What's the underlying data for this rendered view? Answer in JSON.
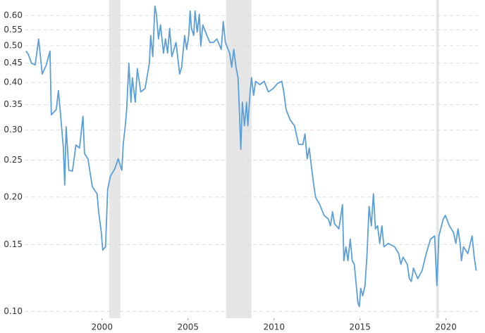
{
  "chart_data": {
    "type": "line",
    "log_y": true,
    "grid": true,
    "xlim": [
      1995.5,
      2021.9
    ],
    "ylim": [
      0.096,
      0.64
    ],
    "xticks": [
      2000,
      2005,
      2010,
      2015,
      2020
    ],
    "yticks": [
      {
        "value": 0.1,
        "label": "0.10"
      },
      0.15,
      {
        "value": 0.2,
        "label": "0.20"
      },
      0.25,
      {
        "value": 0.3,
        "label": "0.30"
      },
      0.35,
      {
        "value": 0.4,
        "label": "0.40"
      },
      0.45,
      {
        "value": 0.5,
        "label": "0.50"
      },
      0.55,
      {
        "value": 0.6,
        "label": "0.60"
      }
    ],
    "shaded_regions": [
      [
        2000.41,
        2001.07
      ],
      [
        2007.21,
        2008.69
      ],
      [
        2019.43,
        2019.59
      ]
    ],
    "shade_color": "#e6e6e6",
    "series": [
      {
        "color": "#5b9fd9",
        "x": [
          1995.57,
          1995.7,
          1995.9,
          1996.11,
          1996.31,
          1996.52,
          1996.76,
          1996.97,
          1997.05,
          1997.34,
          1997.46,
          1997.58,
          1997.75,
          1997.83,
          1997.91,
          1998.07,
          1998.28,
          1998.48,
          1998.69,
          1998.89,
          1998.98,
          1999.18,
          1999.43,
          1999.71,
          1999.8,
          1999.96,
          2000.04,
          2000.2,
          2000.33,
          2000.49,
          2000.74,
          2000.94,
          2001.15,
          2001.23,
          2001.35,
          2001.43,
          2001.56,
          2001.68,
          2001.76,
          2001.93,
          2002.05,
          2002.25,
          2002.5,
          2002.75,
          2002.83,
          2002.95,
          2003.07,
          2003.16,
          2003.28,
          2003.4,
          2003.57,
          2003.69,
          2003.81,
          2003.93,
          2004.06,
          2004.3,
          2004.51,
          2004.63,
          2004.8,
          2004.92,
          2005.04,
          2005.12,
          2005.2,
          2005.33,
          2005.41,
          2005.53,
          2005.66,
          2005.74,
          2005.86,
          2006.02,
          2006.27,
          2006.48,
          2006.68,
          2006.93,
          2007.05,
          2007.17,
          2007.42,
          2007.54,
          2007.66,
          2007.79,
          2007.91,
          2007.99,
          2008.07,
          2008.16,
          2008.28,
          2008.4,
          2008.48,
          2008.61,
          2008.69,
          2008.81,
          2008.93,
          2009.18,
          2009.43,
          2009.67,
          2009.96,
          2010.2,
          2010.45,
          2010.57,
          2010.7,
          2010.94,
          2011.19,
          2011.43,
          2011.68,
          2011.8,
          2011.93,
          2012.05,
          2012.17,
          2012.3,
          2012.42,
          2012.66,
          2012.91,
          2013.16,
          2013.28,
          2013.4,
          2013.52,
          2013.77,
          2013.89,
          2013.98,
          2014.06,
          2014.18,
          2014.3,
          2014.43,
          2014.55,
          2014.67,
          2014.8,
          2014.88,
          2014.96,
          2015.04,
          2015.16,
          2015.29,
          2015.41,
          2015.53,
          2015.66,
          2015.78,
          2015.9,
          2016.02,
          2016.15,
          2016.27,
          2016.39,
          2016.64,
          2017.01,
          2017.25,
          2017.38,
          2017.5,
          2017.75,
          2017.87,
          2017.99,
          2018.11,
          2018.36,
          2018.61,
          2018.85,
          2019.1,
          2019.34,
          2019.47,
          2019.59,
          2019.84,
          2019.96,
          2020.2,
          2020.45,
          2020.57,
          2020.7,
          2020.82,
          2020.9,
          2021.02,
          2021.27,
          2021.52,
          2021.64,
          2021.76
        ],
        "values": [
          0.484,
          0.476,
          0.449,
          0.445,
          0.521,
          0.421,
          0.445,
          0.484,
          0.329,
          0.34,
          0.381,
          0.333,
          0.269,
          0.215,
          0.306,
          0.235,
          0.234,
          0.274,
          0.269,
          0.326,
          0.26,
          0.252,
          0.213,
          0.204,
          0.183,
          0.161,
          0.145,
          0.148,
          0.21,
          0.227,
          0.237,
          0.252,
          0.235,
          0.275,
          0.308,
          0.34,
          0.449,
          0.355,
          0.412,
          0.355,
          0.435,
          0.378,
          0.386,
          0.449,
          0.532,
          0.468,
          0.636,
          0.605,
          0.521,
          0.567,
          0.478,
          0.521,
          0.478,
          0.555,
          0.468,
          0.51,
          0.421,
          0.439,
          0.532,
          0.489,
          0.532,
          0.617,
          0.555,
          0.532,
          0.617,
          0.543,
          0.605,
          0.499,
          0.567,
          0.543,
          0.51,
          0.51,
          0.521,
          0.489,
          0.579,
          0.51,
          0.478,
          0.439,
          0.489,
          0.439,
          0.412,
          0.333,
          0.267,
          0.355,
          0.308,
          0.355,
          0.308,
          0.378,
          0.412,
          0.37,
          0.403,
          0.395,
          0.403,
          0.378,
          0.386,
          0.398,
          0.403,
          0.378,
          0.34,
          0.319,
          0.308,
          0.275,
          0.275,
          0.293,
          0.252,
          0.269,
          0.242,
          0.217,
          0.1995,
          0.191,
          0.179,
          0.175,
          0.168,
          0.183,
          0.17,
          0.165,
          0.179,
          0.191,
          0.136,
          0.148,
          0.136,
          0.155,
          0.136,
          0.133,
          0.115,
          0.105,
          0.103,
          0.115,
          0.11,
          0.117,
          0.142,
          0.189,
          0.168,
          0.204,
          0.165,
          0.168,
          0.151,
          0.168,
          0.148,
          0.151,
          0.148,
          0.142,
          0.133,
          0.139,
          0.133,
          0.122,
          0.12,
          0.13,
          0.122,
          0.128,
          0.142,
          0.155,
          0.158,
          0.117,
          0.158,
          0.175,
          0.179,
          0.168,
          0.161,
          0.151,
          0.165,
          0.151,
          0.136,
          0.148,
          0.142,
          0.158,
          0.139,
          0.128
        ]
      }
    ]
  }
}
